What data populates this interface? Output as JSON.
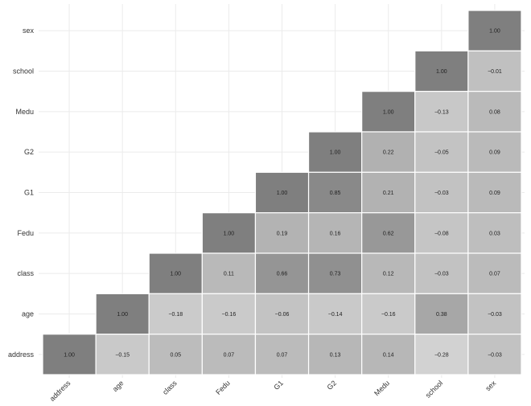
{
  "chart_data": {
    "type": "heatmap",
    "title": "",
    "xlabel": "",
    "ylabel": "",
    "grid": true,
    "legend": "none",
    "x_categories": [
      "address",
      "age",
      "class",
      "Fedu",
      "G1",
      "G2",
      "Medu",
      "school",
      "sex"
    ],
    "y_categories": [
      "sex",
      "school",
      "Medu",
      "G2",
      "G1",
      "Fedu",
      "class",
      "age",
      "address"
    ],
    "rows": [
      {
        "row": "sex",
        "values": [
          null,
          null,
          null,
          null,
          null,
          null,
          null,
          null,
          1.0
        ]
      },
      {
        "row": "school",
        "values": [
          null,
          null,
          null,
          null,
          null,
          null,
          null,
          1.0,
          -0.01
        ]
      },
      {
        "row": "Medu",
        "values": [
          null,
          null,
          null,
          null,
          null,
          null,
          1.0,
          -0.13,
          0.08
        ]
      },
      {
        "row": "G2",
        "values": [
          null,
          null,
          null,
          null,
          null,
          1.0,
          0.22,
          -0.05,
          0.09
        ]
      },
      {
        "row": "G1",
        "values": [
          null,
          null,
          null,
          null,
          1.0,
          0.85,
          0.21,
          -0.03,
          0.09
        ]
      },
      {
        "row": "Fedu",
        "values": [
          null,
          null,
          null,
          1.0,
          0.19,
          0.16,
          0.62,
          -0.08,
          0.03
        ]
      },
      {
        "row": "class",
        "values": [
          null,
          null,
          1.0,
          0.11,
          0.66,
          0.73,
          0.12,
          -0.03,
          0.07
        ]
      },
      {
        "row": "age",
        "values": [
          null,
          1.0,
          -0.18,
          -0.16,
          -0.06,
          -0.14,
          -0.16,
          0.38,
          -0.03
        ]
      },
      {
        "row": "address",
        "values": [
          1.0,
          -0.15,
          0.05,
          0.07,
          0.07,
          0.13,
          0.14,
          -0.28,
          -0.03
        ]
      }
    ],
    "labels": [
      [
        "",
        "",
        "",
        "",
        "",
        "",
        "",
        "",
        "1.00"
      ],
      [
        "",
        "",
        "",
        "",
        "",
        "",
        "",
        "1.00",
        "−0.01"
      ],
      [
        "",
        "",
        "",
        "",
        "",
        "",
        "1.00",
        "−0.13",
        "0.08"
      ],
      [
        "",
        "",
        "",
        "",
        "",
        "1.00",
        "0.22",
        "−0.05",
        "0.09"
      ],
      [
        "",
        "",
        "",
        "",
        "1.00",
        "0.85",
        "0.21",
        "−0.03",
        "0.09"
      ],
      [
        "",
        "",
        "",
        "1.00",
        "0.19",
        "0.16",
        "0.62",
        "−0.08",
        "0.03"
      ],
      [
        "",
        "",
        "1.00",
        "0.11",
        "0.66",
        "0.73",
        "0.12",
        "−0.03",
        "0.07"
      ],
      [
        "",
        "1.00",
        "−0.18",
        "−0.16",
        "−0.06",
        "−0.14",
        "−0.16",
        "0.38",
        "−0.03"
      ],
      [
        "1.00",
        "−0.15",
        "0.05",
        "0.07",
        "0.07",
        "0.13",
        "0.14",
        "−0.28",
        "−0.03"
      ]
    ],
    "colors": {
      "background": "#ffffff",
      "grid": "#ebebeb",
      "cell_border": "#ffffff",
      "low": "#d3d3d3",
      "high": "#7f7f7f"
    }
  }
}
